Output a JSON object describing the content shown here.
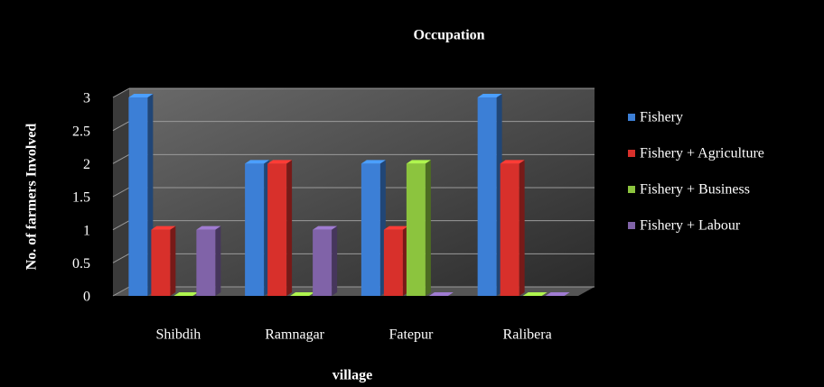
{
  "chart_data": {
    "type": "bar",
    "title": "Occupation",
    "x_label": "village",
    "y_label": "No. of farmers Involved",
    "categories": [
      "Shibdih",
      "Ramnagar",
      "Fatepur",
      "Ralibera"
    ],
    "series": [
      {
        "name": "Fishery",
        "color": "#3c7fd6",
        "values": [
          3,
          2,
          2,
          3
        ]
      },
      {
        "name": "Fishery + Agriculture",
        "color": "#d8302b",
        "values": [
          1,
          2,
          1,
          2
        ]
      },
      {
        "name": "Fishery + Business",
        "color": "#8cc43e",
        "values": [
          0,
          0,
          2,
          0
        ]
      },
      {
        "name": "Fishery + Labour",
        "color": "#8063a8",
        "values": [
          1,
          1,
          0,
          0
        ]
      }
    ],
    "ylim": [
      0,
      3
    ],
    "yticks": [
      0,
      0.5,
      1,
      1.5,
      2,
      2.5,
      3
    ],
    "grid": true,
    "legend": "right"
  }
}
